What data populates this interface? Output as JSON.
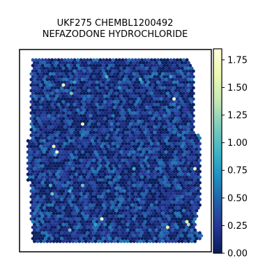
{
  "chart_data": {
    "type": "heatmap",
    "title_lines": [
      "UKF275 CHEMBL1200492",
      "NEFAZODONE HYDROCHLORIDE"
    ],
    "xlabel": "",
    "ylabel": "",
    "grid": false,
    "colormap": "YlGnBu",
    "colorbar": {
      "range": [
        0.0,
        1.85
      ],
      "ticks": [
        0.0,
        0.25,
        0.5,
        0.75,
        1.0,
        1.25,
        1.5,
        1.75
      ],
      "tick_labels": [
        "0.00",
        "0.25",
        "0.50",
        "0.75",
        "1.00",
        "1.25",
        "1.50",
        "1.75"
      ]
    },
    "value_distribution": {
      "typical_low": 0.0,
      "typical_high": 0.55,
      "highlight_values": [
        1.85,
        1.6,
        1.3,
        1.1,
        0.9,
        0.8,
        0.7
      ]
    }
  }
}
